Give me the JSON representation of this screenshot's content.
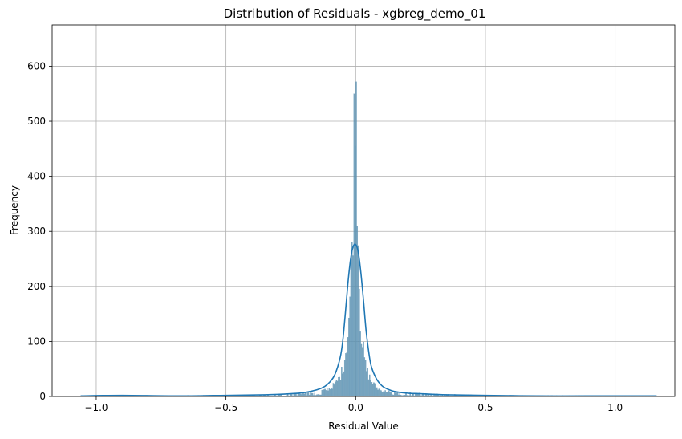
{
  "chart_data": {
    "type": "histogram",
    "title": "Distribution of Residuals - xgbreg_demo_01",
    "xlabel": "Residual Value",
    "ylabel": "Frequency",
    "xlim": [
      -1.17,
      1.23
    ],
    "ylim": [
      0,
      675
    ],
    "x_ticks": [
      -1.0,
      -0.5,
      0.0,
      0.5,
      1.0
    ],
    "x_tick_labels": [
      "−1.0",
      "−0.5",
      "0.0",
      "0.5",
      "1.0"
    ],
    "y_ticks": [
      0,
      100,
      200,
      300,
      400,
      500,
      600
    ],
    "y_tick_labels": [
      "0",
      "100",
      "200",
      "300",
      "400",
      "500",
      "600"
    ],
    "grid": true,
    "histogram": {
      "bin_width": 0.004,
      "range": [
        -1.06,
        1.16
      ],
      "peak_points": [
        [
          -1.06,
          1
        ],
        [
          -0.5,
          2
        ],
        [
          -0.3,
          3
        ],
        [
          -0.2,
          5
        ],
        [
          -0.15,
          8
        ],
        [
          -0.1,
          14
        ],
        [
          -0.08,
          22
        ],
        [
          -0.06,
          35
        ],
        [
          -0.05,
          50
        ],
        [
          -0.04,
          75
        ],
        [
          -0.03,
          115
        ],
        [
          -0.02,
          190
        ],
        [
          -0.015,
          260
        ],
        [
          -0.01,
          340
        ],
        [
          -0.006,
          470
        ],
        [
          -0.003,
          560
        ],
        [
          -0.001,
          640
        ],
        [
          0.002,
          545
        ],
        [
          0.005,
          440
        ],
        [
          0.008,
          340
        ],
        [
          0.012,
          250
        ],
        [
          0.016,
          175
        ],
        [
          0.02,
          125
        ],
        [
          0.03,
          80
        ],
        [
          0.04,
          50
        ],
        [
          0.06,
          28
        ],
        [
          0.08,
          16
        ],
        [
          0.1,
          10
        ],
        [
          0.2,
          6
        ],
        [
          0.3,
          4
        ],
        [
          0.5,
          2
        ],
        [
          1.16,
          1
        ]
      ]
    },
    "kde": {
      "color": "#1f77b4",
      "x": [
        -1.06,
        -0.9,
        -0.7,
        -0.5,
        -0.35,
        -0.25,
        -0.2,
        -0.15,
        -0.12,
        -0.1,
        -0.08,
        -0.06,
        -0.05,
        -0.04,
        -0.03,
        -0.02,
        -0.01,
        0.0,
        0.01,
        0.02,
        0.03,
        0.04,
        0.05,
        0.06,
        0.08,
        0.1,
        0.12,
        0.15,
        0.2,
        0.25,
        0.35,
        0.5,
        0.7,
        0.9,
        1.16
      ],
      "y": [
        1,
        2,
        1,
        2,
        3,
        5,
        7,
        12,
        18,
        26,
        40,
        70,
        100,
        150,
        205,
        248,
        272,
        276,
        262,
        225,
        175,
        120,
        82,
        55,
        32,
        20,
        14,
        9,
        6,
        5,
        3,
        2,
        1,
        1,
        1
      ]
    },
    "bar_color": "#4f87a8"
  }
}
